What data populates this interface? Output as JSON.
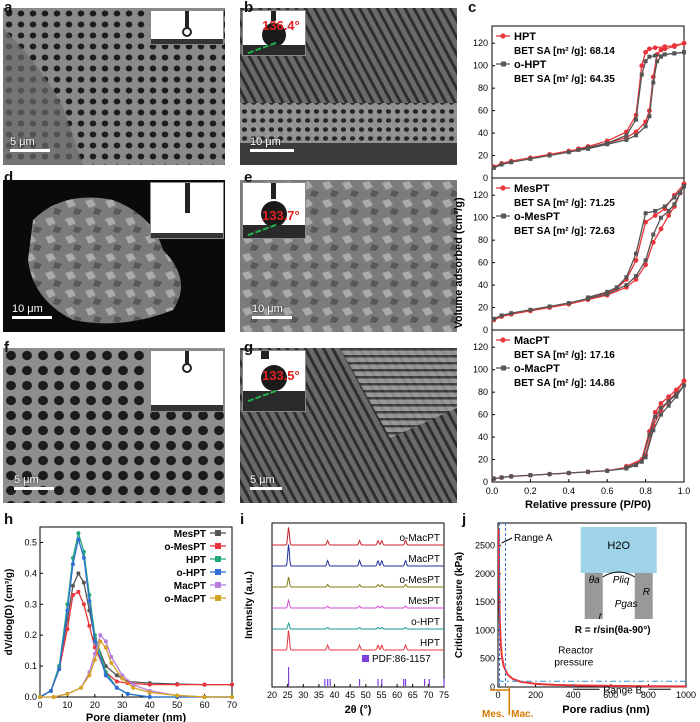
{
  "panels": {
    "a": {
      "label": "a",
      "scale": "5 μm"
    },
    "b": {
      "label": "b",
      "scale": "10 μm",
      "angle": "136.4°"
    },
    "c": {
      "label": "c"
    },
    "d": {
      "label": "d",
      "scale": "10 μm"
    },
    "e": {
      "label": "e",
      "scale": "10 μm",
      "angle": "133.7°"
    },
    "f": {
      "label": "f",
      "scale": "5 μm"
    },
    "g": {
      "label": "g",
      "scale": "5 μm",
      "angle": "133.5°"
    },
    "h": {
      "label": "h"
    },
    "i": {
      "label": "i"
    },
    "j": {
      "label": "j"
    }
  },
  "colors": {
    "red": "#e8343a",
    "gray": "#555555",
    "green": "#22a777",
    "blue": "#2f6fd6",
    "purple": "#b77ee0",
    "gold": "#d6a321",
    "navy": "#1f2f9a",
    "olive": "#7f7a10",
    "magenta": "#d04ad0",
    "teal": "#159a94",
    "crimson": "#c8202a",
    "skyblue": "#9fd4e8"
  },
  "chart_data": [
    {
      "id": "c-top",
      "type": "line",
      "panel": "c",
      "xlim": [
        0,
        1.0
      ],
      "ylim": [
        0,
        130
      ],
      "yticks": [
        "0",
        "20",
        "40",
        "60",
        "80",
        "100",
        "120"
      ],
      "series": [
        {
          "name": "HPT",
          "sa_label": "BET SA [m² /g]:  68.14",
          "x": [
            0.01,
            0.05,
            0.1,
            0.2,
            0.3,
            0.4,
            0.5,
            0.6,
            0.7,
            0.75,
            0.8,
            0.82,
            0.84,
            0.86,
            0.88,
            0.9,
            0.95,
            1.0
          ],
          "y": [
            10,
            13,
            15,
            18,
            21,
            24,
            27,
            31,
            36,
            41,
            50,
            60,
            90,
            110,
            114,
            115,
            117,
            120
          ],
          "x_des": [
            1.0,
            0.95,
            0.9,
            0.85,
            0.82,
            0.8,
            0.78,
            0.75,
            0.7,
            0.6,
            0.5,
            0.45
          ],
          "y_des": [
            120,
            118,
            117,
            116,
            115,
            112,
            100,
            56,
            41,
            33,
            28,
            26
          ]
        },
        {
          "name": "o-HPT",
          "sa_label": "BET SA [m² /g]:  64.35",
          "x": [
            0.01,
            0.05,
            0.1,
            0.2,
            0.3,
            0.4,
            0.5,
            0.6,
            0.7,
            0.75,
            0.8,
            0.82,
            0.84,
            0.86,
            0.88,
            0.9,
            0.95,
            1.0
          ],
          "y": [
            9,
            12,
            14,
            17,
            20,
            23,
            26,
            30,
            34,
            38,
            46,
            55,
            85,
            104,
            108,
            110,
            111,
            112
          ],
          "x_des": [
            1.0,
            0.95,
            0.9,
            0.85,
            0.82,
            0.8,
            0.78,
            0.75,
            0.7,
            0.6,
            0.5,
            0.45
          ],
          "y_des": [
            112,
            111,
            110,
            109,
            108,
            104,
            92,
            52,
            38,
            31,
            27,
            25
          ]
        }
      ]
    },
    {
      "id": "c-mid",
      "type": "line",
      "panel": "c",
      "xlim": [
        0,
        1.0
      ],
      "ylim": [
        0,
        130
      ],
      "yticks": [
        "0",
        "20",
        "40",
        "60",
        "80",
        "100",
        "120"
      ],
      "series": [
        {
          "name": "MesPT",
          "sa_label": "BET SA [m² /g]:  71.25",
          "x": [
            0.01,
            0.05,
            0.1,
            0.2,
            0.3,
            0.4,
            0.5,
            0.6,
            0.7,
            0.75,
            0.8,
            0.84,
            0.88,
            0.92,
            0.95,
            0.98,
            1.0
          ],
          "y": [
            9,
            12,
            14,
            17,
            20,
            23,
            27,
            31,
            38,
            45,
            58,
            78,
            90,
            102,
            110,
            122,
            130
          ],
          "x_des": [
            1.0,
            0.95,
            0.9,
            0.85,
            0.8,
            0.75,
            0.7,
            0.65,
            0.6,
            0.5
          ],
          "y_des": [
            130,
            120,
            108,
            102,
            96,
            62,
            45,
            37,
            33,
            28
          ]
        },
        {
          "name": "o-MesPT",
          "sa_label": "BET SA [m² /g]:  72.63",
          "x": [
            0.01,
            0.05,
            0.1,
            0.2,
            0.3,
            0.4,
            0.5,
            0.6,
            0.7,
            0.75,
            0.8,
            0.84,
            0.88,
            0.92,
            0.95,
            0.98,
            1.0
          ],
          "y": [
            10,
            13,
            15,
            18,
            21,
            24,
            28,
            32,
            40,
            48,
            62,
            85,
            100,
            106,
            112,
            122,
            128
          ],
          "x_des": [
            1.0,
            0.95,
            0.9,
            0.85,
            0.8,
            0.75,
            0.7,
            0.65,
            0.6,
            0.5
          ],
          "y_des": [
            128,
            118,
            110,
            106,
            104,
            68,
            47,
            38,
            34,
            29
          ]
        }
      ]
    },
    {
      "id": "c-bot",
      "type": "line",
      "panel": "c",
      "xlim": [
        0,
        1.0
      ],
      "ylim": [
        0,
        130
      ],
      "yticks": [
        "0",
        "20",
        "40",
        "60",
        "80",
        "100",
        "120"
      ],
      "xticks": [
        "0.0",
        "0.2",
        "0.4",
        "0.6",
        "0.8",
        "1.0"
      ],
      "xlabel": "Relative pressure (P/P0)",
      "series": [
        {
          "name": "MacPT",
          "sa_label": "BET SA [m² /g]:  17.16",
          "x": [
            0.01,
            0.05,
            0.1,
            0.2,
            0.3,
            0.4,
            0.5,
            0.6,
            0.7,
            0.75,
            0.8,
            0.84,
            0.88,
            0.92,
            0.96,
            1.0
          ],
          "y": [
            3,
            4,
            5,
            6,
            7,
            8,
            9,
            10,
            13,
            16,
            24,
            50,
            64,
            72,
            80,
            90
          ],
          "x_des": [
            1.0,
            0.96,
            0.92,
            0.88,
            0.85,
            0.82,
            0.78,
            0.7
          ],
          "y_des": [
            90,
            82,
            76,
            70,
            62,
            45,
            20,
            14
          ]
        },
        {
          "name": "o-MacPT",
          "sa_label": "BET SA [m² /g]:  14.86",
          "x": [
            0.01,
            0.05,
            0.1,
            0.2,
            0.3,
            0.4,
            0.5,
            0.6,
            0.7,
            0.75,
            0.8,
            0.84,
            0.88,
            0.92,
            0.96,
            1.0
          ],
          "y": [
            3,
            4,
            5,
            6,
            7,
            8,
            9,
            10,
            12,
            15,
            22,
            46,
            60,
            68,
            76,
            86
          ],
          "x_des": [
            1.0,
            0.96,
            0.92,
            0.88,
            0.85,
            0.82,
            0.78,
            0.7
          ],
          "y_des": [
            86,
            78,
            72,
            66,
            58,
            42,
            18,
            13
          ]
        }
      ]
    },
    {
      "id": "c-ylabel",
      "panel": "c",
      "ylabel": "Volume adsorbed (cm³/g)"
    },
    {
      "id": "h",
      "type": "line",
      "panel": "h",
      "xlim": [
        0,
        70
      ],
      "ylim": [
        0,
        0.55
      ],
      "xticks": [
        "0",
        "10",
        "20",
        "30",
        "40",
        "50",
        "60",
        "70"
      ],
      "yticks": [
        "0.0",
        "0.1",
        "0.2",
        "0.3",
        "0.4",
        "0.5"
      ],
      "xlabel": "Pore diameter (nm)",
      "ylabel": "dV/dlog(D) (cm³/g)",
      "series": [
        {
          "name": "MesPT",
          "x": [
            0,
            4,
            7,
            10,
            12,
            14,
            16,
            18,
            20,
            24,
            28,
            32,
            40,
            50,
            60,
            70
          ],
          "y": [
            0,
            0.02,
            0.1,
            0.25,
            0.36,
            0.4,
            0.37,
            0.28,
            0.19,
            0.1,
            0.07,
            0.05,
            0.045,
            0.042,
            0.04,
            0.04
          ]
        },
        {
          "name": "o-MesPT",
          "x": [
            0,
            4,
            7,
            10,
            12,
            14,
            16,
            18,
            20,
            24,
            28,
            32,
            40,
            50,
            60,
            70
          ],
          "y": [
            0,
            0.02,
            0.09,
            0.22,
            0.33,
            0.34,
            0.3,
            0.23,
            0.16,
            0.08,
            0.05,
            0.045,
            0.04,
            0.04,
            0.04,
            0.04
          ]
        },
        {
          "name": "HPT",
          "x": [
            0,
            4,
            7,
            10,
            12,
            14,
            16,
            18,
            20,
            24,
            28,
            32,
            40,
            50,
            60,
            70
          ],
          "y": [
            0,
            0.02,
            0.1,
            0.3,
            0.45,
            0.53,
            0.47,
            0.33,
            0.2,
            0.08,
            0.03,
            0.01,
            0,
            0,
            0,
            0
          ]
        },
        {
          "name": "o-HPT",
          "x": [
            0,
            4,
            7,
            10,
            12,
            14,
            16,
            18,
            20,
            24,
            28,
            32,
            40,
            50,
            60,
            70
          ],
          "y": [
            0,
            0.02,
            0.09,
            0.28,
            0.43,
            0.51,
            0.45,
            0.31,
            0.18,
            0.07,
            0.03,
            0.01,
            0,
            0,
            0,
            0
          ]
        },
        {
          "name": "MacPT",
          "x": [
            0,
            5,
            10,
            15,
            18,
            20,
            22,
            24,
            26,
            30,
            34,
            40,
            50,
            60,
            70
          ],
          "y": [
            0,
            0,
            0.01,
            0.03,
            0.08,
            0.14,
            0.2,
            0.18,
            0.13,
            0.07,
            0.04,
            0.02,
            0.005,
            0,
            0
          ]
        },
        {
          "name": "o-MacPT",
          "x": [
            0,
            5,
            10,
            15,
            18,
            20,
            22,
            24,
            26,
            30,
            34,
            40,
            50,
            60,
            70
          ],
          "y": [
            0,
            0,
            0.01,
            0.03,
            0.07,
            0.12,
            0.18,
            0.16,
            0.11,
            0.06,
            0.03,
            0.015,
            0.005,
            0,
            0
          ]
        }
      ]
    },
    {
      "id": "i",
      "type": "line",
      "panel": "i",
      "xlim": [
        20,
        75
      ],
      "xticks": [
        "20",
        "25",
        "30",
        "35",
        "40",
        "45",
        "50",
        "55",
        "60",
        "65",
        "70",
        "75"
      ],
      "xlabel": "2θ (°)",
      "ylabel": "Intensity (a.u.)",
      "series": [
        {
          "name": "o-MacPT",
          "peaks": [
            25.3,
            37.8,
            48.0,
            53.9,
            55.1,
            62.7
          ]
        },
        {
          "name": "MacPT",
          "peaks": [
            25.3,
            37.8,
            48.0,
            53.9,
            55.1,
            62.7
          ]
        },
        {
          "name": "o-MesPT",
          "peaks": [
            25.3,
            37.8,
            48.0,
            53.9,
            55.1,
            62.7
          ]
        },
        {
          "name": "MesPT",
          "peaks": [
            25.3,
            37.8,
            48.0,
            53.9,
            55.1,
            62.7
          ]
        },
        {
          "name": "o-HPT",
          "peaks": [
            25.3,
            37.8,
            48.0,
            53.9,
            55.1,
            62.7
          ]
        },
        {
          "name": "HPT",
          "peaks": [
            25.3,
            37.8,
            48.0,
            53.9,
            55.1,
            62.7
          ]
        }
      ],
      "reference": {
        "name": "PDF:86-1157",
        "peaks": [
          25.3,
          36.9,
          37.8,
          38.6,
          48.0,
          53.9,
          55.1,
          62.1,
          62.7,
          68.8,
          70.3,
          75.0
        ]
      }
    },
    {
      "id": "j",
      "type": "line",
      "panel": "j",
      "xlim": [
        0,
        1000
      ],
      "ylim": [
        0,
        2900
      ],
      "xticks": [
        "0",
        "200",
        "400",
        "600",
        "800",
        "1000"
      ],
      "yticks": [
        "0",
        "500",
        "1000",
        "1500",
        "2000",
        "2500"
      ],
      "xlabel": "Pore radius (nm)",
      "ylabel": "Critical pressure (kPa)",
      "series": [
        {
          "name": "curve",
          "x": [
            4,
            6,
            8,
            10,
            15,
            20,
            30,
            50,
            80,
            120,
            200,
            300,
            400,
            600,
            800,
            1000
          ],
          "y": [
            2800,
            1900,
            1400,
            1120,
            750,
            560,
            375,
            225,
            140,
            93,
            56,
            37,
            28,
            19,
            14,
            11
          ]
        }
      ],
      "reactor_pressure": 101,
      "annotations": {
        "range_a": "Range A",
        "range_b": "Range B",
        "reactor": "Reactor\npressure",
        "mes": "Mes.",
        "mac": "Mac.",
        "h2o": "H2O",
        "theta": "θa",
        "pliq": "Pliq",
        "pgas": "Pgas",
        "R": "R",
        "r": "r",
        "formula": "R = r/sin(θa-90°)"
      }
    }
  ]
}
